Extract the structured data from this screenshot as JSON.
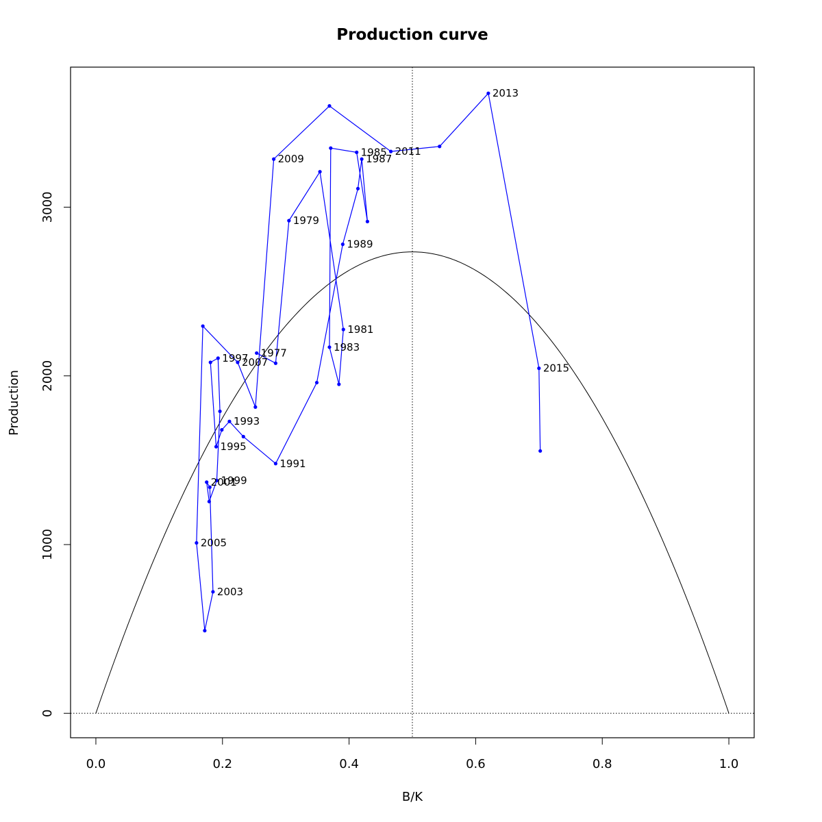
{
  "chart_data": {
    "type": "line",
    "title": "Production curve",
    "xlabel": "B/K",
    "ylabel": "Production",
    "xlim": [
      -0.04,
      1.04
    ],
    "ylim": [
      -145,
      3830
    ],
    "xticks": [
      0.0,
      0.2,
      0.4,
      0.6,
      0.8,
      1.0
    ],
    "xtick_labels": [
      "0.0",
      "0.2",
      "0.4",
      "0.6",
      "0.8",
      "1.0"
    ],
    "yticks": [
      0,
      1000,
      2000,
      3000
    ],
    "ytick_labels": [
      "0",
      "1000",
      "2000",
      "3000"
    ],
    "grid": false,
    "reference_lines": {
      "vertical_x": 0.5,
      "horizontal_y": 0
    },
    "curve": {
      "description": "P = 4 * MSY * (B/K) * (1 - B/K)",
      "msy": 2735,
      "color": "#000000"
    },
    "series": [
      {
        "color": "#0000ff",
        "points": [
          {
            "x": 0.254,
            "y": 2135,
            "label": "1977"
          },
          {
            "x": 0.284,
            "y": 2075,
            "label": ""
          },
          {
            "x": 0.305,
            "y": 2920,
            "label": "1979"
          },
          {
            "x": 0.354,
            "y": 3210,
            "label": ""
          },
          {
            "x": 0.391,
            "y": 2275,
            "label": "1981"
          },
          {
            "x": 0.384,
            "y": 1950,
            "label": ""
          },
          {
            "x": 0.369,
            "y": 2170,
            "label": "1983"
          },
          {
            "x": 0.371,
            "y": 3350,
            "label": ""
          },
          {
            "x": 0.412,
            "y": 3325,
            "label": "1985"
          },
          {
            "x": 0.429,
            "y": 2915,
            "label": ""
          },
          {
            "x": 0.42,
            "y": 3285,
            "label": "1987"
          },
          {
            "x": 0.414,
            "y": 3110,
            "label": ""
          },
          {
            "x": 0.39,
            "y": 2780,
            "label": "1989"
          },
          {
            "x": 0.349,
            "y": 1960,
            "label": ""
          },
          {
            "x": 0.284,
            "y": 1480,
            "label": "1991"
          },
          {
            "x": 0.233,
            "y": 1640,
            "label": ""
          },
          {
            "x": 0.211,
            "y": 1730,
            "label": "1993"
          },
          {
            "x": 0.199,
            "y": 1680,
            "label": ""
          },
          {
            "x": 0.19,
            "y": 1580,
            "label": "1995"
          },
          {
            "x": 0.181,
            "y": 2080,
            "label": ""
          },
          {
            "x": 0.193,
            "y": 2105,
            "label": "1997"
          },
          {
            "x": 0.196,
            "y": 1790,
            "label": ""
          },
          {
            "x": 0.191,
            "y": 1380,
            "label": "1999"
          },
          {
            "x": 0.179,
            "y": 1255,
            "label": ""
          },
          {
            "x": 0.175,
            "y": 1370,
            "label": "2001"
          },
          {
            "x": 0.18,
            "y": 1340,
            "label": ""
          },
          {
            "x": 0.185,
            "y": 720,
            "label": "2003"
          },
          {
            "x": 0.172,
            "y": 490,
            "label": ""
          },
          {
            "x": 0.159,
            "y": 1010,
            "label": "2005"
          },
          {
            "x": 0.169,
            "y": 2295,
            "label": ""
          },
          {
            "x": 0.224,
            "y": 2080,
            "label": "2007"
          },
          {
            "x": 0.252,
            "y": 1815,
            "label": ""
          },
          {
            "x": 0.281,
            "y": 3285,
            "label": "2009"
          },
          {
            "x": 0.369,
            "y": 3600,
            "label": ""
          },
          {
            "x": 0.466,
            "y": 3330,
            "label": "2011"
          },
          {
            "x": 0.543,
            "y": 3360,
            "label": ""
          },
          {
            "x": 0.62,
            "y": 3675,
            "label": "2013"
          },
          {
            "x": 0.7,
            "y": 2045,
            "label": "2015"
          },
          {
            "x": 0.702,
            "y": 1555,
            "label": ""
          }
        ]
      }
    ]
  }
}
